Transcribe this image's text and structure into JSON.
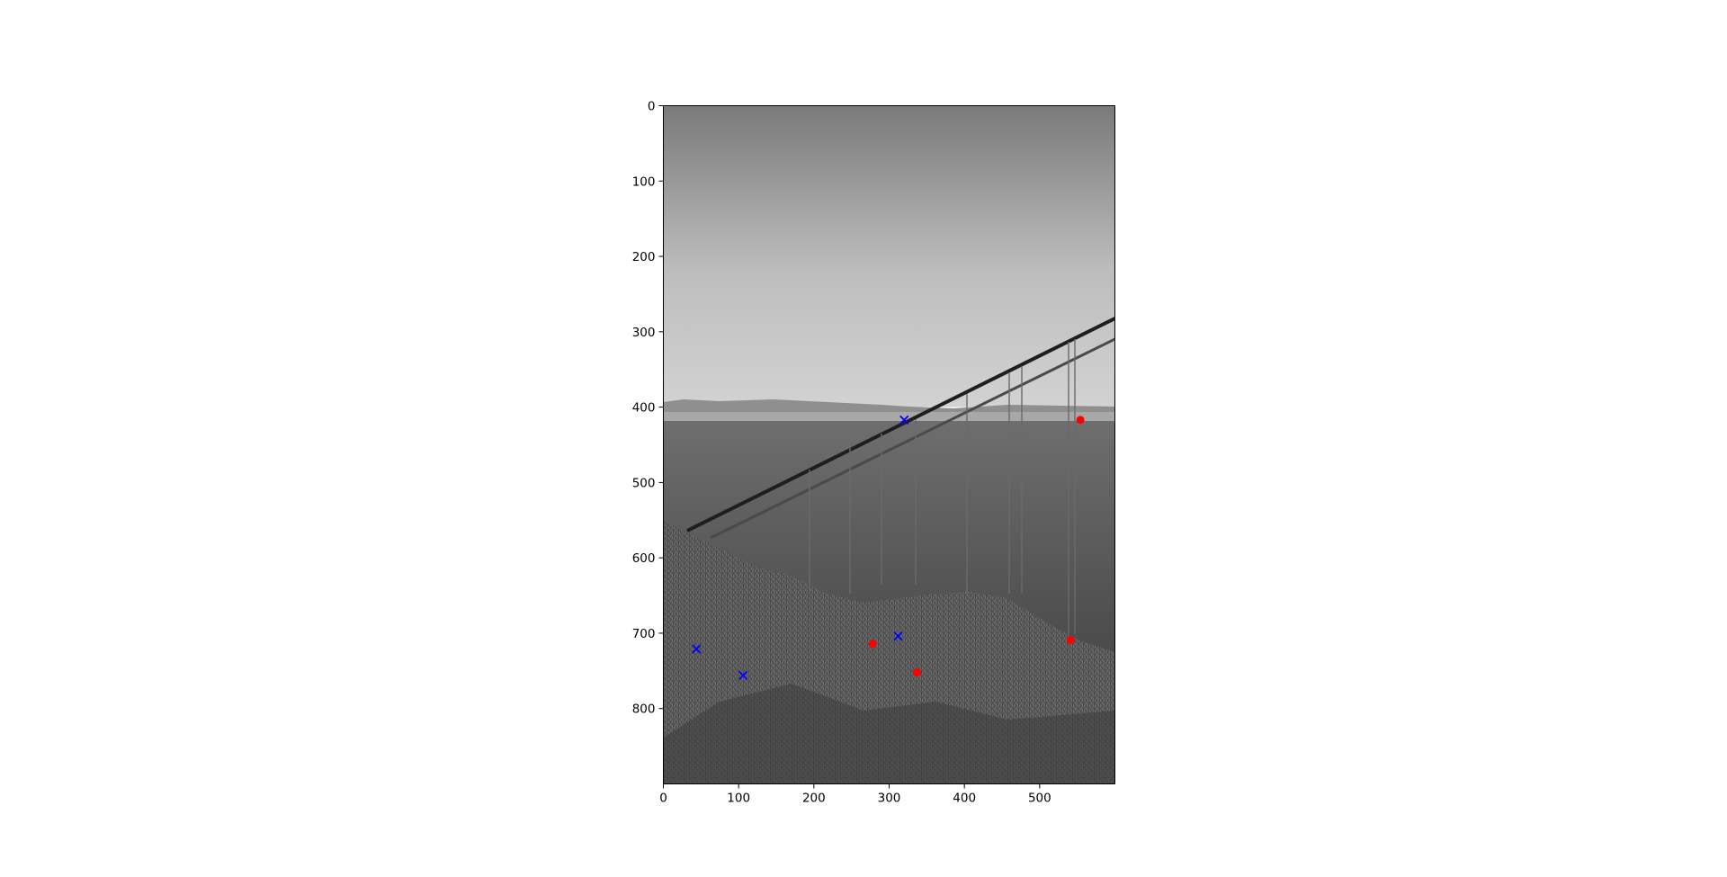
{
  "chart_data": {
    "type": "scatter",
    "title": "",
    "xlabel": "",
    "ylabel": "",
    "xlim": [
      0,
      600
    ],
    "ylim": [
      900,
      0
    ],
    "y_axis_inverted": true,
    "grid": false,
    "legend": "none",
    "background": "grayscale photograph of a bridge over a bay with a grassy hillside in the foreground",
    "x_ticks": [
      0,
      100,
      200,
      300,
      400,
      500
    ],
    "y_ticks": [
      0,
      100,
      200,
      300,
      400,
      500,
      600,
      700,
      800
    ],
    "series": [
      {
        "marker": "x",
        "color": "#0000ff",
        "points": [
          {
            "x": 320,
            "y": 417
          },
          {
            "x": 312,
            "y": 704
          },
          {
            "x": 44,
            "y": 721
          },
          {
            "x": 106,
            "y": 756
          }
        ]
      },
      {
        "marker": "circle",
        "color": "#ff0000",
        "points": [
          {
            "x": 554,
            "y": 417
          },
          {
            "x": 541,
            "y": 709
          },
          {
            "x": 278,
            "y": 714
          },
          {
            "x": 337,
            "y": 752
          }
        ]
      }
    ]
  }
}
